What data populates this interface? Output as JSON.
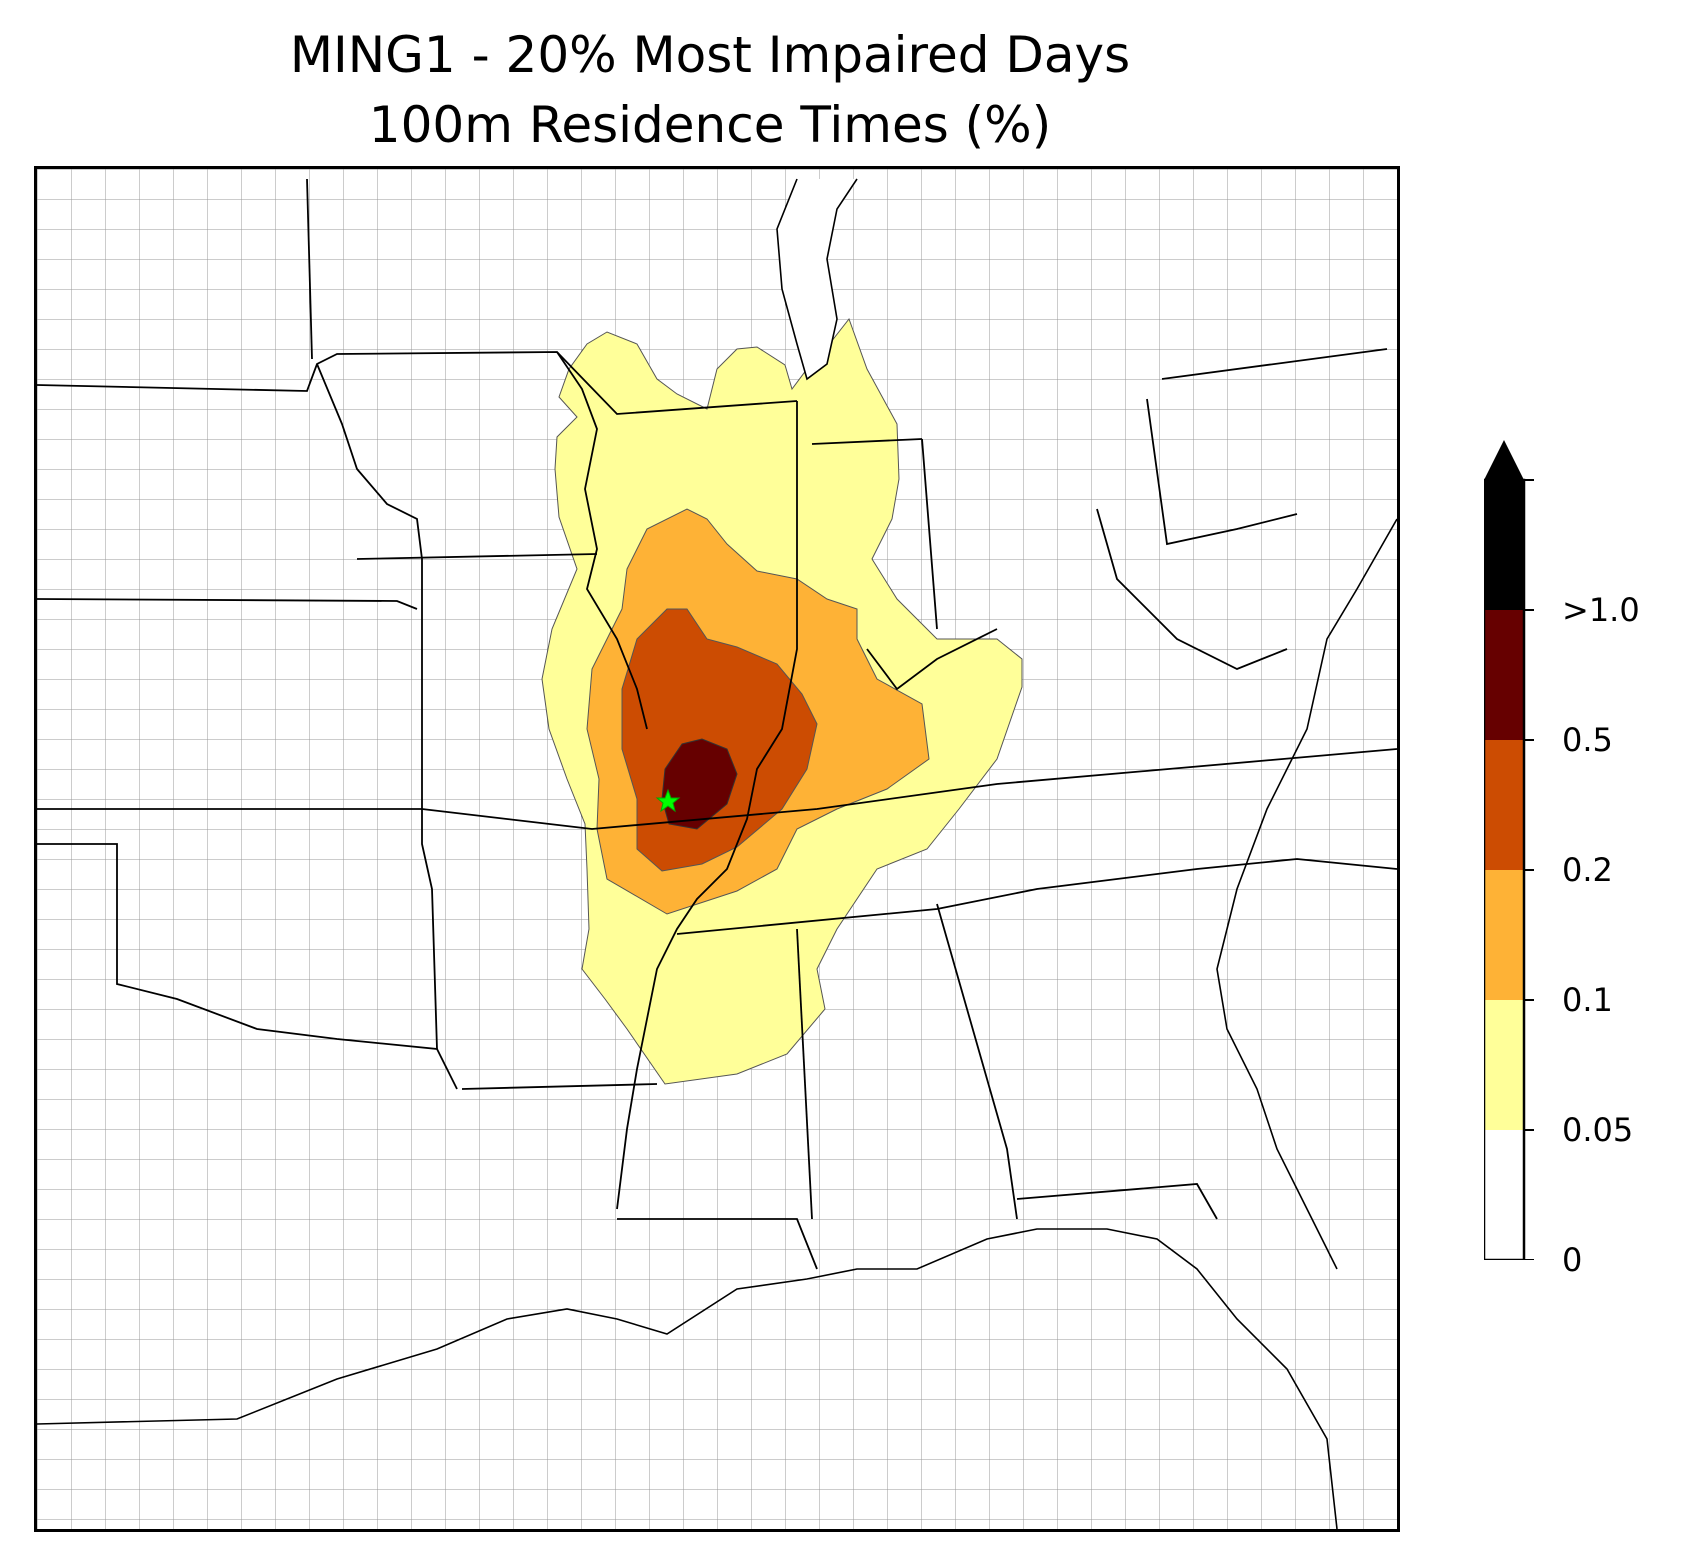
{
  "title": {
    "line1": "MING1 - 20% Most Impaired Days",
    "line2": "100m Residence Times (%)"
  },
  "legend": {
    "ticks": [
      "0",
      "0.05",
      "0.1",
      "0.2",
      "0.5",
      ">1.0"
    ],
    "bins": [
      {
        "from": "0",
        "to": "0.05",
        "color": "#ffffff"
      },
      {
        "from": "0.05",
        "to": "0.1",
        "color": "#ffff99"
      },
      {
        "from": "0.1",
        "to": "0.2",
        "color": "#feb236"
      },
      {
        "from": "0.2",
        "to": "0.5",
        "color": "#cc4c02"
      },
      {
        "from": "0.5",
        "to": ">1.0",
        "color": "#660000"
      },
      {
        "from": ">1.0",
        "to": "",
        "color": "#000000"
      }
    ],
    "extend": "max"
  },
  "colors": {
    "state_border": "#000000",
    "county_border": "#999999",
    "receptor_marker": "#00ff00"
  },
  "map": {
    "receptor_marker": "star"
  }
}
